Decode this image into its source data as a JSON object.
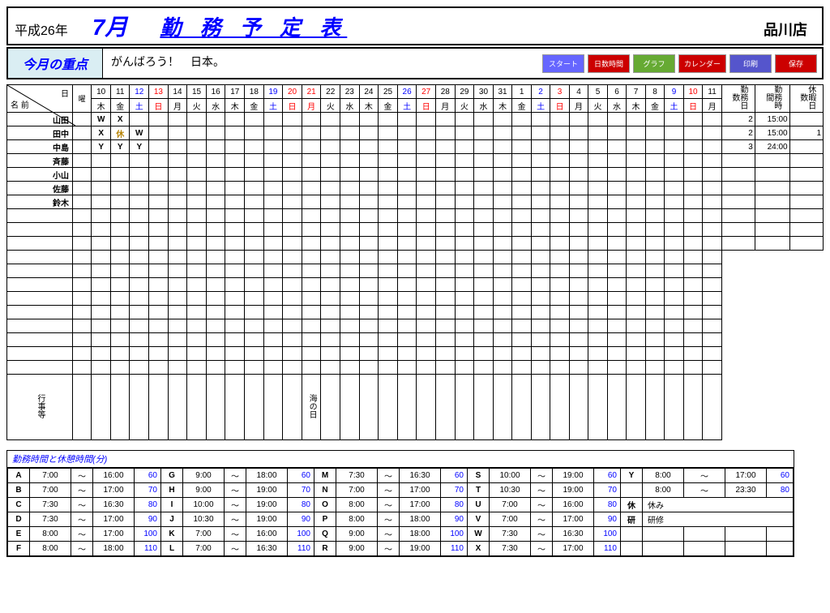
{
  "header": {
    "era": "平成26年",
    "month": "7月",
    "title": "勤 務 予 定 表",
    "store": "品川店"
  },
  "focus": {
    "label": "今月の重点",
    "text": "がんばろう！　日本。"
  },
  "buttons": [
    {
      "label": "スタート",
      "bg": "#6666ff"
    },
    {
      "label": "日数時間",
      "bg": "#cc0000"
    },
    {
      "label": "グラフ",
      "bg": "#66aa33"
    },
    {
      "label": "カレンダー",
      "bg": "#cc0000"
    },
    {
      "label": "印刷",
      "bg": "#5555cc"
    },
    {
      "label": "保存",
      "bg": "#cc0000"
    }
  ],
  "corner": {
    "top": "日",
    "bottom": "名 前",
    "yobi": "曜"
  },
  "days": [
    {
      "d": "10",
      "w": "木",
      "c": ""
    },
    {
      "d": "11",
      "w": "金",
      "c": ""
    },
    {
      "d": "12",
      "w": "土",
      "c": "sat"
    },
    {
      "d": "13",
      "w": "日",
      "c": "sun"
    },
    {
      "d": "14",
      "w": "月",
      "c": ""
    },
    {
      "d": "15",
      "w": "火",
      "c": ""
    },
    {
      "d": "16",
      "w": "水",
      "c": ""
    },
    {
      "d": "17",
      "w": "木",
      "c": ""
    },
    {
      "d": "18",
      "w": "金",
      "c": ""
    },
    {
      "d": "19",
      "w": "土",
      "c": "sat"
    },
    {
      "d": "20",
      "w": "日",
      "c": "sun"
    },
    {
      "d": "21",
      "w": "月",
      "c": "sun"
    },
    {
      "d": "22",
      "w": "火",
      "c": ""
    },
    {
      "d": "23",
      "w": "水",
      "c": ""
    },
    {
      "d": "24",
      "w": "木",
      "c": ""
    },
    {
      "d": "25",
      "w": "金",
      "c": ""
    },
    {
      "d": "26",
      "w": "土",
      "c": "sat"
    },
    {
      "d": "27",
      "w": "日",
      "c": "sun"
    },
    {
      "d": "28",
      "w": "月",
      "c": ""
    },
    {
      "d": "29",
      "w": "火",
      "c": ""
    },
    {
      "d": "30",
      "w": "水",
      "c": ""
    },
    {
      "d": "31",
      "w": "木",
      "c": ""
    },
    {
      "d": "1",
      "w": "金",
      "c": ""
    },
    {
      "d": "2",
      "w": "土",
      "c": "sat"
    },
    {
      "d": "3",
      "w": "日",
      "c": "sun"
    },
    {
      "d": "4",
      "w": "月",
      "c": ""
    },
    {
      "d": "5",
      "w": "火",
      "c": ""
    },
    {
      "d": "6",
      "w": "水",
      "c": ""
    },
    {
      "d": "7",
      "w": "木",
      "c": ""
    },
    {
      "d": "8",
      "w": "金",
      "c": ""
    },
    {
      "d": "9",
      "w": "土",
      "c": "sat"
    },
    {
      "d": "10",
      "w": "日",
      "c": "sun"
    },
    {
      "d": "11",
      "w": "月",
      "c": ""
    }
  ],
  "sumHeaders": [
    "勤務日数",
    "勤務時間",
    "休暇日数"
  ],
  "staff": [
    {
      "name": "山田",
      "cells": [
        "W",
        "X"
      ],
      "sum": [
        "2",
        "15:00",
        ""
      ]
    },
    {
      "name": "田中",
      "cells": [
        "X",
        "休",
        "W"
      ],
      "gold": [
        false,
        true,
        false
      ],
      "sum": [
        "2",
        "15:00",
        "1"
      ]
    },
    {
      "name": "中島",
      "cells": [
        "Y",
        "Y",
        "Y"
      ],
      "sum": [
        "3",
        "24:00",
        ""
      ]
    },
    {
      "name": "斉藤",
      "cells": [],
      "sum": [
        "",
        "",
        ""
      ]
    },
    {
      "name": "小山",
      "cells": [],
      "sum": [
        "",
        "",
        ""
      ]
    },
    {
      "name": "佐藤",
      "cells": [],
      "sum": [
        "",
        "",
        ""
      ]
    },
    {
      "name": "鈴木",
      "cells": [],
      "sum": [
        "",
        "",
        ""
      ]
    }
  ],
  "emptyRows": 12,
  "eventLabel": "行事等",
  "events": {
    "11": "海の日"
  },
  "legendTitle": "勤務時間と休憩時間(分)",
  "shifts": [
    [
      {
        "c": "A",
        "s": "7:00",
        "e": "16:00",
        "m": "60"
      },
      {
        "c": "G",
        "s": "9:00",
        "e": "18:00",
        "m": "60"
      },
      {
        "c": "M",
        "s": "7:30",
        "e": "16:30",
        "m": "60"
      },
      {
        "c": "S",
        "s": "10:00",
        "e": "19:00",
        "m": "60"
      },
      {
        "c": "Y",
        "s": "8:00",
        "e": "17:00",
        "m": "60"
      }
    ],
    [
      {
        "c": "B",
        "s": "7:00",
        "e": "17:00",
        "m": "70"
      },
      {
        "c": "H",
        "s": "9:00",
        "e": "19:00",
        "m": "70"
      },
      {
        "c": "N",
        "s": "7:00",
        "e": "17:00",
        "m": "70"
      },
      {
        "c": "T",
        "s": "10:30",
        "e": "19:00",
        "m": "70"
      },
      {
        "c": "",
        "s": "8:00",
        "e": "23:30",
        "m": "80"
      }
    ],
    [
      {
        "c": "C",
        "s": "7:30",
        "e": "16:30",
        "m": "80"
      },
      {
        "c": "I",
        "s": "10:00",
        "e": "19:00",
        "m": "80"
      },
      {
        "c": "O",
        "s": "8:00",
        "e": "17:00",
        "m": "80"
      },
      {
        "c": "U",
        "s": "7:00",
        "e": "16:00",
        "m": "80"
      },
      {
        "c": "休",
        "label": "休み"
      }
    ],
    [
      {
        "c": "D",
        "s": "7:30",
        "e": "17:00",
        "m": "90"
      },
      {
        "c": "J",
        "s": "10:30",
        "e": "19:00",
        "m": "90"
      },
      {
        "c": "P",
        "s": "8:00",
        "e": "18:00",
        "m": "90"
      },
      {
        "c": "V",
        "s": "7:00",
        "e": "17:00",
        "m": "90"
      },
      {
        "c": "研",
        "label": "研修"
      }
    ],
    [
      {
        "c": "E",
        "s": "8:00",
        "e": "17:00",
        "m": "100"
      },
      {
        "c": "K",
        "s": "7:00",
        "e": "16:00",
        "m": "100"
      },
      {
        "c": "Q",
        "s": "9:00",
        "e": "18:00",
        "m": "100"
      },
      {
        "c": "W",
        "s": "7:30",
        "e": "16:30",
        "m": "100"
      },
      {
        "c": ""
      }
    ],
    [
      {
        "c": "F",
        "s": "8:00",
        "e": "18:00",
        "m": "110"
      },
      {
        "c": "L",
        "s": "7:00",
        "e": "16:30",
        "m": "110"
      },
      {
        "c": "R",
        "s": "9:00",
        "e": "19:00",
        "m": "110"
      },
      {
        "c": "X",
        "s": "7:30",
        "e": "17:00",
        "m": "110"
      },
      {
        "c": ""
      }
    ]
  ]
}
